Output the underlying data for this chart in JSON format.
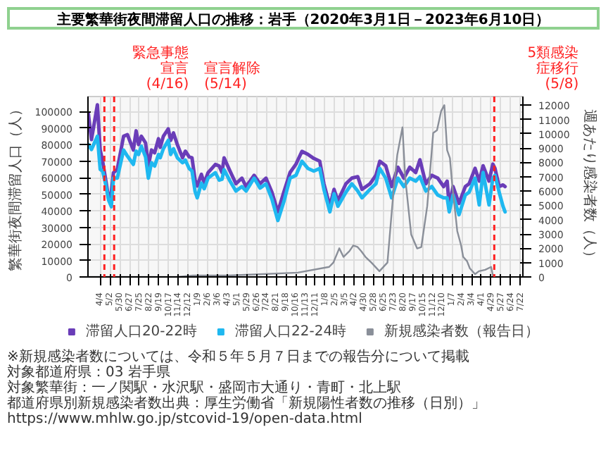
{
  "chart_data": {
    "type": "line",
    "title": "主要繁華街夜間滞留人口の推移：岩手（2020年3月1日－2023年6月10日）",
    "ylabel": "繁華街夜間滞留人口（人）",
    "y2label": "週あたり感染者数（人）",
    "x": [
      "2020-03-01",
      "2020-03-10",
      "2020-03-27",
      "2020-04-04",
      "2020-04-11",
      "2020-04-19",
      "2020-04-28",
      "2020-05-06",
      "2020-05-12",
      "2020-05-23",
      "2020-06-10",
      "2020-06-21",
      "2020-07-08",
      "2020-07-16",
      "2020-07-23",
      "2020-07-31",
      "2020-08-12",
      "2020-08-20",
      "2020-08-29",
      "2020-09-07",
      "2020-09-18",
      "2020-09-23",
      "2020-10-02",
      "2020-10-16",
      "2020-10-23",
      "2020-10-31",
      "2020-11-11",
      "2020-11-26",
      "2020-12-04",
      "2020-12-15",
      "2020-12-23",
      "2021-01-01",
      "2021-01-07",
      "2021-01-19",
      "2021-01-27",
      "2021-02-07",
      "2021-02-28",
      "2021-03-11",
      "2021-03-19",
      "2021-03-25",
      "2021-04-11",
      "2021-04-28",
      "2021-05-15",
      "2021-05-27",
      "2021-06-19",
      "2021-07-06",
      "2021-07-23",
      "2021-08-09",
      "2021-08-26",
      "2021-09-12",
      "2021-09-30",
      "2021-10-17",
      "2021-11-03",
      "2021-11-20",
      "2021-12-07",
      "2021-12-24",
      "2022-01-05",
      "2022-01-22",
      "2022-02-03",
      "2022-02-14",
      "2022-03-09",
      "2022-03-26",
      "2022-04-12",
      "2022-04-24",
      "2022-05-17",
      "2022-06-03",
      "2022-06-14",
      "2022-07-01",
      "2022-07-18",
      "2022-08-05",
      "2022-08-22",
      "2022-09-08",
      "2022-09-25",
      "2022-10-07",
      "2022-10-24",
      "2022-11-10",
      "2022-11-27",
      "2022-12-14",
      "2022-12-24",
      "2022-12-30",
      "2023-01-10",
      "2023-01-27",
      "2023-02-14",
      "2023-02-25",
      "2023-03-14",
      "2023-03-26",
      "2023-04-06",
      "2023-04-23",
      "2023-05-04",
      "2023-05-10",
      "2023-05-22",
      "2023-06-02",
      "2023-06-08"
    ],
    "series": [
      {
        "name": "滞留人口20-22時",
        "color": "#6a3db8",
        "values": [
          98800,
          83000,
          104000,
          76700,
          70000,
          59700,
          47800,
          51200,
          63000,
          65000,
          85000,
          86000,
          76700,
          88300,
          80000,
          85000,
          81000,
          67000,
          76700,
          75000,
          83500,
          78300,
          85000,
          89500,
          82500,
          87000,
          80000,
          72000,
          76000,
          72500,
          72000,
          58500,
          55000,
          62000,
          56700,
          63000,
          68000,
          67000,
          63100,
          72000,
          64000,
          56300,
          59700,
          54600,
          61400,
          56300,
          59700,
          51200,
          39300,
          51200,
          63100,
          68200,
          75900,
          74100,
          71600,
          69900,
          56300,
          42700,
          52900,
          46100,
          56300,
          59700,
          60600,
          52900,
          56300,
          61400,
          69900,
          67200,
          54600,
          66300,
          59700,
          66300,
          63100,
          70800,
          56300,
          61400,
          59700,
          54600,
          57900,
          42700,
          54600,
          44400,
          54600,
          56300,
          65600,
          57900,
          67200,
          57900,
          68200,
          65600,
          54600,
          55600,
          54600
        ]
      },
      {
        "name": "滞留人口22-24時",
        "color": "#1fb8f0",
        "values": [
          80000,
          77000,
          85000,
          65000,
          64000,
          56700,
          46500,
          42400,
          59700,
          59700,
          76700,
          73000,
          68000,
          76000,
          74000,
          79000,
          72500,
          59700,
          69000,
          67000,
          74000,
          72000,
          77500,
          82500,
          74000,
          77500,
          72000,
          69000,
          70600,
          65500,
          64000,
          51500,
          47800,
          56700,
          53300,
          59700,
          63000,
          58500,
          59000,
          64800,
          57900,
          51900,
          54600,
          51900,
          59700,
          53700,
          56300,
          47000,
          34100,
          45300,
          59700,
          61400,
          69900,
          65600,
          64000,
          65600,
          52900,
          39300,
          50300,
          42700,
          51200,
          56300,
          51900,
          47800,
          52900,
          56300,
          65600,
          59700,
          47800,
          59700,
          54600,
          59700,
          57900,
          60600,
          51900,
          54600,
          49500,
          47800,
          47800,
          39300,
          49500,
          37600,
          49500,
          51200,
          59700,
          43500,
          63100,
          43500,
          59700,
          61400,
          51200,
          42700,
          39300
        ]
      },
      {
        "name": "新規感染者数（報告日）",
        "color": "#8a8f99",
        "axis": "y2",
        "x": [
          "2020-03-01",
          "2020-06-29",
          "2020-11-06",
          "2020-12-26",
          "2021-02-04",
          "2021-04-05",
          "2021-07-14",
          "2021-10-22",
          "2022-01-20",
          "2022-02-01",
          "2022-02-18",
          "2022-03-02",
          "2022-03-19",
          "2022-03-30",
          "2022-04-11",
          "2022-04-22",
          "2022-05-04",
          "2022-05-21",
          "2022-06-13",
          "2022-07-06",
          "2022-07-23",
          "2022-08-03",
          "2022-08-18",
          "2022-08-26",
          "2022-09-12",
          "2022-09-29",
          "2022-10-11",
          "2022-10-28",
          "2022-11-14",
          "2022-11-25",
          "2022-12-07",
          "2022-12-16",
          "2022-12-24",
          "2023-01-01",
          "2023-01-08",
          "2023-01-16",
          "2023-01-22",
          "2023-02-02",
          "2023-02-08",
          "2023-02-19",
          "2023-02-27",
          "2023-03-14",
          "2023-03-25",
          "2023-04-12",
          "2023-04-29",
          "2023-05-05"
        ],
        "values": [
          0,
          0,
          0,
          100,
          100,
          100,
          200,
          300,
          700,
          1000,
          2000,
          1400,
          1800,
          2200,
          2100,
          1800,
          1400,
          1000,
          400,
          1000,
          5900,
          8500,
          10450,
          6900,
          2970,
          1990,
          2090,
          4950,
          10050,
          10250,
          11600,
          12000,
          8850,
          8300,
          6300,
          4550,
          3200,
          2200,
          1400,
          1100,
          600,
          200,
          400,
          500,
          700,
          0
        ]
      }
    ],
    "xlim": [
      "2020-02-29",
      "2023-07-29"
    ],
    "xticks": [
      {
        "value": "2020-04-04",
        "label": "4/4"
      },
      {
        "value": "2020-05-02",
        "label": "5/2"
      },
      {
        "value": "2020-05-30",
        "label": "5/30"
      },
      {
        "value": "2020-06-27",
        "label": "6/27"
      },
      {
        "value": "2020-07-25",
        "label": "7/25"
      },
      {
        "value": "2020-08-22",
        "label": "8/22"
      },
      {
        "value": "2020-09-19",
        "label": "9/19"
      },
      {
        "value": "2020-10-17",
        "label": "10/17"
      },
      {
        "value": "2020-11-14",
        "label": "11/14"
      },
      {
        "value": "2020-12-12",
        "label": "12/12"
      },
      {
        "value": "2021-01-09",
        "label": "1/9"
      },
      {
        "value": "2021-02-06",
        "label": "2/6"
      },
      {
        "value": "2021-03-06",
        "label": "3/6"
      },
      {
        "value": "2021-04-03",
        "label": "4/3"
      },
      {
        "value": "2021-05-01",
        "label": "5/1"
      },
      {
        "value": "2021-05-29",
        "label": "5/29"
      },
      {
        "value": "2021-06-26",
        "label": "6/26"
      },
      {
        "value": "2021-07-24",
        "label": "7/24"
      },
      {
        "value": "2021-08-21",
        "label": "8/21"
      },
      {
        "value": "2021-09-18",
        "label": "9/18"
      },
      {
        "value": "2021-10-16",
        "label": "10/16"
      },
      {
        "value": "2021-11-13",
        "label": "11/13"
      },
      {
        "value": "2021-12-11",
        "label": "12/11"
      },
      {
        "value": "2022-01-08",
        "label": "1/8"
      },
      {
        "value": "2022-02-05",
        "label": "2/5"
      },
      {
        "value": "2022-03-05",
        "label": "3/5"
      },
      {
        "value": "2022-04-02",
        "label": "4/2"
      },
      {
        "value": "2022-04-30",
        "label": "4/30"
      },
      {
        "value": "2022-05-28",
        "label": "5/28"
      },
      {
        "value": "2022-06-25",
        "label": "6/25"
      },
      {
        "value": "2022-07-23",
        "label": "7/23"
      },
      {
        "value": "2022-08-20",
        "label": "8/20"
      },
      {
        "value": "2022-09-17",
        "label": "9/17"
      },
      {
        "value": "2022-10-15",
        "label": "10/15"
      },
      {
        "value": "2022-11-12",
        "label": "11/12"
      },
      {
        "value": "2022-12-10",
        "label": "12/10"
      },
      {
        "value": "2023-01-07",
        "label": "1/7"
      },
      {
        "value": "2023-02-04",
        "label": "2/4"
      },
      {
        "value": "2023-03-04",
        "label": "3/4"
      },
      {
        "value": "2023-04-01",
        "label": "4/1"
      },
      {
        "value": "2023-04-29",
        "label": "4/29"
      },
      {
        "value": "2023-05-27",
        "label": "5/27"
      },
      {
        "value": "2023-06-24",
        "label": "6/24"
      },
      {
        "value": "2023-07-22",
        "label": "7/22"
      }
    ],
    "ylim": [
      0,
      109000
    ],
    "yticks": [
      0,
      10000,
      20000,
      30000,
      40000,
      50000,
      60000,
      70000,
      80000,
      90000,
      100000
    ],
    "y2lim": [
      0,
      12600
    ],
    "y2ticks": [
      0,
      1000,
      2000,
      3000,
      4000,
      5000,
      6000,
      7000,
      8000,
      9000,
      10000,
      11000,
      12000
    ],
    "ref_lines": [
      {
        "axis": "x",
        "value": "2020-04-16",
        "label": "緊急事態宣言(4/16)",
        "color": "#ff2020",
        "line_style": "dashed"
      },
      {
        "axis": "x",
        "value": "2020-05-14",
        "label": "宣言解除(5/14)",
        "color": "#ff2020",
        "line_style": "dashed"
      },
      {
        "axis": "x",
        "value": "2023-05-08",
        "label": "5類感染症移行(5/8)",
        "color": "#ff2020",
        "line_style": "dashed"
      }
    ],
    "grid": true,
    "legend": "bottom",
    "annotations": [
      "※新規感染者数については、令和５年５月７日までの報告分について掲載",
      "対象都道府県：03 岩手県",
      "対象繁華街：一ノ関駅・水沢駅・盛岡市大通り・青町・北上駅",
      "都道府県別新規感染者数出典：厚生労働省「新規陽性者数の推移（日別）」 https://www.mhlw.go.jp/stcovid-19/open-data.html"
    ]
  }
}
